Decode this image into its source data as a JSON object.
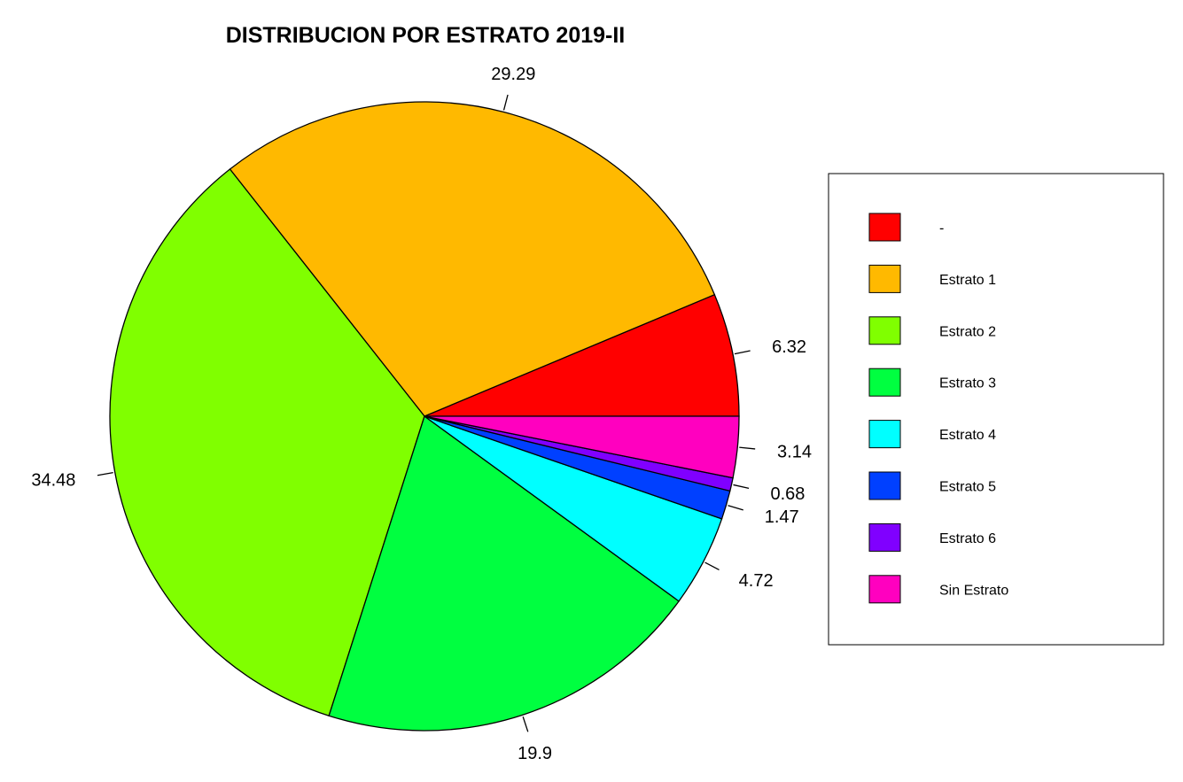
{
  "chart_data": {
    "type": "pie",
    "title": "DISTRIBUCION POR ESTRATO 2019-II",
    "categories": [
      "-",
      "Estrato 1",
      "Estrato 2",
      "Estrato 3",
      "Estrato 4",
      "Estrato 5",
      "Estrato 6",
      "Sin Estrato"
    ],
    "values": [
      6.32,
      29.29,
      34.48,
      19.9,
      4.72,
      1.47,
      0.68,
      3.14
    ],
    "labels": [
      "6.32",
      "29.29",
      "34.48",
      "19.9",
      "4.72",
      "1.47",
      "0.68",
      "3.14"
    ],
    "colors": [
      "#FF0000",
      "#FFB900",
      "#80FF00",
      "#00FF40",
      "#00FFFF",
      "#0040FF",
      "#8000FF",
      "#FF00BF"
    ],
    "start": "3 o'clock",
    "direction": "counterclockwise",
    "legend_position": "right"
  }
}
